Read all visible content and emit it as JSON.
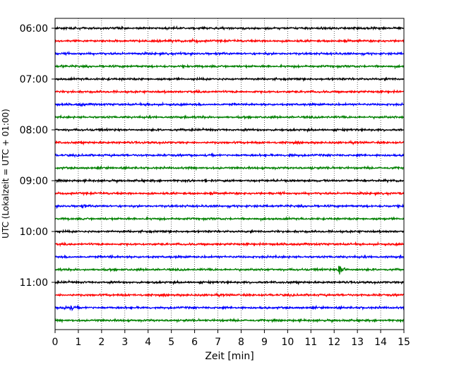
{
  "chart_data": {
    "type": "line",
    "title": "",
    "xlabel": "Zeit  [min]",
    "ylabel": "UTC (Lokalzeit = UTC + 01:00)",
    "xlim": [
      0,
      15
    ],
    "x_ticks": [
      "0",
      "1",
      "2",
      "3",
      "4",
      "5",
      "6",
      "7",
      "8",
      "9",
      "10",
      "11",
      "12",
      "13",
      "14",
      "15"
    ],
    "y_tick_labels": [
      "06:00",
      "07:00",
      "08:00",
      "09:00",
      "10:00",
      "11:00"
    ],
    "trace_minutes": 15,
    "grid": "vertical dotted",
    "color_cycle": [
      "#000000",
      "#ff0000",
      "#0000ff",
      "#008000"
    ],
    "series": [
      {
        "start": "06:00",
        "color": "#000000"
      },
      {
        "start": "06:15",
        "color": "#ff0000",
        "events": [
          [
            5.8,
            4
          ],
          [
            6.1,
            3
          ]
        ]
      },
      {
        "start": "06:30",
        "color": "#0000ff",
        "events": [
          [
            5.4,
            3
          ],
          [
            9.1,
            3
          ]
        ]
      },
      {
        "start": "06:45",
        "color": "#008000",
        "events": [
          [
            0.3,
            3
          ],
          [
            8.2,
            2
          ],
          [
            9.3,
            2
          ]
        ]
      },
      {
        "start": "07:00",
        "color": "#000000"
      },
      {
        "start": "07:15",
        "color": "#ff0000",
        "events": [
          [
            6.1,
            2
          ]
        ]
      },
      {
        "start": "07:30",
        "color": "#0000ff",
        "events": [
          [
            1.1,
            4
          ],
          [
            4.0,
            4
          ]
        ]
      },
      {
        "start": "07:45",
        "color": "#008000"
      },
      {
        "start": "08:00",
        "color": "#000000"
      },
      {
        "start": "08:15",
        "color": "#ff0000",
        "events": [
          [
            7.0,
            2
          ]
        ]
      },
      {
        "start": "08:30",
        "color": "#0000ff",
        "events": [
          [
            10.1,
            4
          ],
          [
            10.5,
            3
          ]
        ]
      },
      {
        "start": "08:45",
        "color": "#008000",
        "events": [
          [
            7.1,
            2
          ],
          [
            11.0,
            3
          ]
        ]
      },
      {
        "start": "09:00",
        "color": "#000000"
      },
      {
        "start": "09:15",
        "color": "#ff0000"
      },
      {
        "start": "09:30",
        "color": "#0000ff",
        "events": [
          [
            1.2,
            4
          ]
        ]
      },
      {
        "start": "09:45",
        "color": "#008000"
      },
      {
        "start": "10:00",
        "color": "#000000"
      },
      {
        "start": "10:15",
        "color": "#ff0000",
        "events": [
          [
            10.5,
            2
          ]
        ]
      },
      {
        "start": "10:30",
        "color": "#0000ff",
        "events": [
          [
            2.4,
            3
          ]
        ]
      },
      {
        "start": "10:45",
        "color": "#008000",
        "events": [
          [
            12.2,
            12
          ]
        ]
      },
      {
        "start": "11:00",
        "color": "#000000"
      },
      {
        "start": "11:15",
        "color": "#ff0000"
      },
      {
        "start": "11:30",
        "color": "#0000ff",
        "events": [
          [
            0.4,
            5
          ],
          [
            0.7,
            5
          ]
        ]
      },
      {
        "start": "11:45",
        "color": "#008000"
      }
    ]
  }
}
